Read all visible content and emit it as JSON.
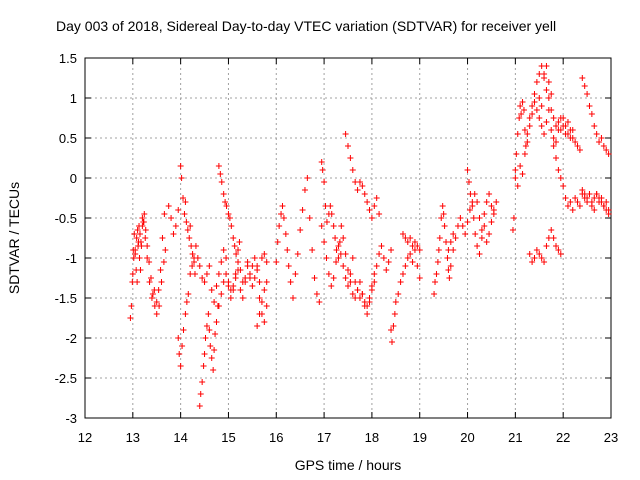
{
  "chart_data": {
    "type": "scatter",
    "title": "Day 003 of 2018, Sidereal Day-to-day VTEC variation (SDTVAR) for receiver yell",
    "xlabel": "GPS time / hours",
    "ylabel": "SDTVAR / TECUs",
    "xlim": [
      12,
      23
    ],
    "ylim": [
      -3,
      1.5
    ],
    "x_ticks": [
      12,
      13,
      14,
      15,
      16,
      17,
      18,
      19,
      20,
      21,
      22,
      23
    ],
    "x_tick_labels": [
      "12",
      "13",
      "14",
      "15",
      "16",
      "17",
      "18",
      "19",
      "20",
      "21",
      "22",
      "23"
    ],
    "y_ticks": [
      -3,
      -2.5,
      -2,
      -1.5,
      -1,
      -0.5,
      0,
      0.5,
      1,
      1.5
    ],
    "y_tick_labels": [
      "-3",
      "-2.5",
      "-2",
      "-1.5",
      "-1",
      "-0.5",
      "0",
      "0.5",
      "1",
      "1.5"
    ],
    "grid": true,
    "marker": "+",
    "series": [
      {
        "name": "SDTVAR",
        "color": "#ff0000",
        "x": [
          12.95,
          12.97,
          12.99,
          13.01,
          13.03,
          13.05,
          13.07,
          13.09,
          13.11,
          13.13,
          13.15,
          13.17,
          13.2,
          13.23,
          13.26,
          13.3,
          13.35,
          13.4,
          13.45,
          13.5,
          13.55,
          13.6,
          13.65,
          13.68,
          13.0,
          13.02,
          13.05,
          13.08,
          13.1,
          13.12,
          13.14,
          13.16,
          13.18,
          13.2,
          13.22,
          13.24,
          13.27,
          13.3,
          13.34,
          13.38,
          13.42,
          13.46,
          13.5,
          13.54,
          13.58,
          13.62,
          13.66,
          13.75,
          13.8,
          13.85,
          13.9,
          13.95,
          14.0,
          14.02,
          14.05,
          14.08,
          14.1,
          14.12,
          14.15,
          14.18,
          14.2,
          14.22,
          14.25,
          14.28,
          14.3,
          13.95,
          13.97,
          14.0,
          14.03,
          14.06,
          14.1,
          14.13,
          14.16,
          14.2,
          14.24,
          14.28,
          14.32,
          14.36,
          14.4,
          14.45,
          14.5,
          14.55,
          14.6,
          14.65,
          14.7,
          14.75,
          14.8,
          14.85,
          14.9,
          14.95,
          15.0,
          15.05,
          15.1,
          15.15,
          15.2,
          15.25,
          15.3,
          15.35,
          15.4,
          15.45,
          15.5,
          15.55,
          15.6,
          15.65,
          15.7,
          15.75,
          15.8,
          14.4,
          14.42,
          14.45,
          14.48,
          14.5,
          14.52,
          14.55,
          14.58,
          14.6,
          14.62,
          14.65,
          14.68,
          14.7,
          14.72,
          14.75,
          14.78,
          14.8,
          14.85,
          14.9,
          14.95,
          15.0,
          15.05,
          15.1,
          15.15,
          15.2,
          15.25,
          15.3,
          15.35,
          15.4,
          15.45,
          15.5,
          15.55,
          15.6,
          15.65,
          15.7,
          15.75,
          15.8,
          14.8,
          14.83,
          14.86,
          14.9,
          14.93,
          14.96,
          15.0,
          15.03,
          15.06,
          15.1,
          15.13,
          15.16,
          15.2,
          15.23,
          15.6,
          15.65,
          15.7,
          15.75,
          15.8,
          16.0,
          16.03,
          16.06,
          16.1,
          16.13,
          16.16,
          16.2,
          16.23,
          16.26,
          16.3,
          16.35,
          16.4,
          16.45,
          16.5,
          16.55,
          16.6,
          16.65,
          16.7,
          16.75,
          16.8,
          16.85,
          16.9,
          16.95,
          16.97,
          17.0,
          17.03,
          17.06,
          17.1,
          17.13,
          17.16,
          17.2,
          17.23,
          17.26,
          17.3,
          17.33,
          17.36,
          17.4,
          17.45,
          17.5,
          17.55,
          17.6,
          17.65,
          17.7,
          17.75,
          17.8,
          17.85,
          17.9,
          17.95,
          18.0,
          18.05,
          18.1,
          18.15,
          18.2,
          18.25,
          18.3,
          18.35,
          18.4,
          16.95,
          17.0,
          17.05,
          17.1,
          17.15,
          17.2,
          17.25,
          17.3,
          17.35,
          17.4,
          17.45,
          17.5,
          17.55,
          17.6,
          17.65,
          17.7,
          17.75,
          17.8,
          17.85,
          17.9,
          17.95,
          18.0,
          18.05,
          17.45,
          17.5,
          17.55,
          17.6,
          17.65,
          17.7,
          17.75,
          17.8,
          17.85,
          17.9,
          17.95,
          18.0,
          18.05,
          18.1,
          18.15,
          18.4,
          18.42,
          18.45,
          18.48,
          18.5,
          18.55,
          18.6,
          18.65,
          18.7,
          18.75,
          18.8,
          18.85,
          18.9,
          18.95,
          19.0,
          18.65,
          18.7,
          18.75,
          18.8,
          18.85,
          18.9,
          18.95,
          19.0,
          19.3,
          19.32,
          19.35,
          19.38,
          19.4,
          19.42,
          19.45,
          19.48,
          19.5,
          19.52,
          19.55,
          19.58,
          19.6,
          19.62,
          19.65,
          19.7,
          19.6,
          19.65,
          19.7,
          19.75,
          19.8,
          19.85,
          19.9,
          19.95,
          20.0,
          20.05,
          20.1,
          20.15,
          20.2,
          20.25,
          20.3,
          20.35,
          20.4,
          20.45,
          20.5,
          20.55,
          20.6,
          20.0,
          20.03,
          20.06,
          20.1,
          20.13,
          20.16,
          20.2,
          20.25,
          20.3,
          20.35,
          20.4,
          20.45,
          20.5,
          20.55,
          20.95,
          20.97,
          21.0,
          21.02,
          21.05,
          21.08,
          21.1,
          21.12,
          21.15,
          21.18,
          21.2,
          21.22,
          21.25,
          21.3,
          21.35,
          21.4,
          21.45,
          21.5,
          21.55,
          21.6,
          21.65,
          21.7,
          21.75,
          21.8,
          21.85,
          21.9,
          21.95,
          22.0,
          22.05,
          22.1,
          22.15,
          22.2,
          22.25,
          22.3,
          22.35,
          22.4,
          22.45,
          22.5,
          22.55,
          22.6,
          22.65,
          22.7,
          22.75,
          22.8,
          22.85,
          22.9,
          22.95,
          21.0,
          21.05,
          21.1,
          21.15,
          21.2,
          21.25,
          21.3,
          21.35,
          21.4,
          21.45,
          21.5,
          21.55,
          21.6,
          21.65,
          21.7,
          21.75,
          21.5,
          21.55,
          21.6,
          21.65,
          21.7,
          21.75,
          21.8,
          21.85,
          21.9,
          21.95,
          22.0,
          22.05,
          22.1,
          22.15,
          22.2,
          21.8,
          21.85,
          21.9,
          21.95,
          22.0,
          22.05,
          22.1,
          22.15,
          22.2,
          22.25,
          22.3,
          22.35,
          22.4,
          22.45,
          22.5,
          22.55,
          22.6,
          22.65,
          22.7,
          22.75,
          22.8,
          22.85,
          22.9,
          22.95,
          21.3,
          21.35,
          21.4,
          21.45,
          21.5,
          21.55,
          21.6,
          21.65,
          21.7,
          21.75,
          21.8,
          21.85,
          21.9,
          21.95,
          22.4,
          22.45,
          22.5,
          22.55,
          22.6,
          22.65,
          22.7,
          22.75,
          22.8,
          22.85,
          22.9,
          22.95
        ],
        "y": [
          -1.75,
          -1.6,
          -1.3,
          -0.9,
          -0.7,
          -0.95,
          -1.15,
          -1.3,
          -0.85,
          -0.6,
          -0.7,
          -0.8,
          -0.5,
          -0.55,
          -0.75,
          -1.0,
          -1.3,
          -1.5,
          -1.4,
          -1.55,
          -1.6,
          -1.3,
          -1.05,
          -0.9,
          -1.2,
          -1.0,
          -0.9,
          -0.75,
          -0.65,
          -0.8,
          -1.0,
          -1.15,
          -0.85,
          -0.6,
          -0.55,
          -0.45,
          -0.65,
          -0.85,
          -1.05,
          -1.25,
          -1.45,
          -1.6,
          -1.7,
          -1.4,
          -1.15,
          -0.75,
          -0.45,
          -0.35,
          -0.5,
          -0.7,
          -0.6,
          -0.4,
          0.15,
          0.0,
          -0.25,
          -0.45,
          -0.3,
          -0.55,
          -0.65,
          -0.75,
          -0.6,
          -0.85,
          -0.95,
          -1.05,
          -1.2,
          -2.0,
          -2.2,
          -2.35,
          -2.1,
          -1.9,
          -1.7,
          -1.55,
          -1.45,
          -1.2,
          -1.1,
          -1.0,
          -0.85,
          -1.0,
          -1.1,
          -1.25,
          -1.3,
          -1.2,
          -1.1,
          -1.4,
          -1.55,
          -1.35,
          -1.2,
          -1.05,
          -0.9,
          -1.0,
          -1.3,
          -1.4,
          -1.35,
          -1.25,
          -1.15,
          -1.4,
          -1.5,
          -1.3,
          -1.05,
          -1.25,
          -1.1,
          -1.0,
          -1.15,
          -1.3,
          -1.0,
          -0.95,
          -1.05,
          -2.85,
          -2.7,
          -2.55,
          -2.35,
          -2.2,
          -2.0,
          -1.85,
          -1.7,
          -1.9,
          -2.1,
          -2.25,
          -2.4,
          -2.15,
          -1.95,
          -1.8,
          -1.6,
          -1.6,
          -1.45,
          -1.3,
          -1.2,
          -1.35,
          -1.5,
          -1.4,
          -1.2,
          -1.05,
          -1.15,
          -1.3,
          -1.25,
          -1.1,
          -1.2,
          -1.35,
          -1.25,
          -1.1,
          -1.5,
          -1.7,
          -1.8,
          -1.6,
          0.15,
          0.05,
          -0.05,
          -0.2,
          -0.3,
          -0.35,
          -0.45,
          -0.5,
          -0.6,
          -0.75,
          -0.85,
          -0.95,
          -0.9,
          -0.8,
          -1.85,
          -1.7,
          -1.55,
          -1.4,
          -1.3,
          -1.05,
          -0.8,
          -0.6,
          -0.45,
          -0.35,
          -0.5,
          -0.7,
          -0.9,
          -1.1,
          -1.3,
          -1.5,
          -1.2,
          -0.95,
          -0.65,
          -0.4,
          -0.15,
          0.0,
          -0.5,
          -0.9,
          -1.25,
          -1.45,
          -1.55,
          0.2,
          0.1,
          -0.05,
          -0.35,
          -0.55,
          -0.45,
          -0.35,
          -0.45,
          -0.6,
          -0.75,
          -0.9,
          -1.0,
          -0.8,
          -0.6,
          -0.75,
          -0.95,
          -1.15,
          -1.3,
          -1.45,
          -1.5,
          -1.4,
          -1.3,
          -1.45,
          -1.6,
          -1.7,
          -1.55,
          -1.35,
          -1.2,
          -1.1,
          -0.95,
          -0.85,
          -1.0,
          -1.15,
          -1.05,
          -0.9,
          -0.6,
          -0.8,
          -1.0,
          -1.2,
          -1.35,
          -1.25,
          -1.05,
          -0.85,
          -0.95,
          -1.1,
          -1.25,
          -1.35,
          -1.2,
          -1.0,
          -1.3,
          -1.4,
          -1.5,
          -1.45,
          -1.55,
          -1.6,
          -1.5,
          -1.4,
          -1.3,
          0.55,
          0.4,
          0.25,
          0.1,
          -0.05,
          -0.15,
          -0.05,
          -0.1,
          -0.2,
          -0.3,
          -0.4,
          -0.5,
          -0.35,
          -0.25,
          -0.45,
          -1.9,
          -2.05,
          -1.85,
          -1.7,
          -1.55,
          -1.45,
          -1.3,
          -1.2,
          -1.1,
          -1.0,
          -0.95,
          -1.05,
          -0.9,
          -1.1,
          -1.25,
          -0.7,
          -0.75,
          -0.8,
          -0.75,
          -0.85,
          -0.8,
          -0.85,
          -0.9,
          -1.45,
          -1.3,
          -1.2,
          -1.05,
          -0.9,
          -0.75,
          -0.5,
          -0.35,
          -0.45,
          -0.6,
          -0.8,
          -1.0,
          -1.15,
          -1.25,
          -1.1,
          -0.9,
          -0.9,
          -0.8,
          -0.7,
          -0.75,
          -0.6,
          -0.5,
          -0.6,
          -0.7,
          -0.55,
          -0.4,
          -0.3,
          -0.2,
          -0.3,
          -0.5,
          -0.65,
          -0.45,
          -0.3,
          -0.2,
          -0.35,
          -0.45,
          -0.3,
          0.1,
          -0.05,
          -0.2,
          -0.35,
          -0.5,
          -0.7,
          -0.85,
          -0.95,
          -0.75,
          -0.6,
          -0.8,
          -0.7,
          -0.55,
          -0.4,
          -0.65,
          -0.5,
          0.1,
          0.3,
          0.55,
          0.75,
          0.9,
          0.8,
          0.95,
          0.85,
          0.6,
          0.4,
          0.55,
          0.75,
          0.9,
          1.05,
          1.2,
          1.3,
          1.4,
          1.25,
          1.1,
          1.0,
          0.85,
          0.75,
          0.65,
          0.7,
          0.6,
          0.75,
          0.65,
          0.55,
          0.5,
          0.6,
          0.45,
          0.4,
          0.35,
          1.25,
          1.15,
          1.05,
          0.9,
          0.8,
          0.65,
          0.55,
          0.45,
          0.5,
          0.4,
          0.35,
          0.3,
          0.0,
          -0.1,
          0.15,
          0.05,
          0.3,
          0.45,
          0.65,
          0.8,
          0.95,
          0.85,
          1.0,
          0.9,
          1.3,
          1.4,
          1.2,
          1.05,
          0.75,
          0.65,
          0.55,
          0.7,
          0.85,
          0.6,
          0.5,
          0.45,
          0.6,
          0.75,
          0.65,
          0.55,
          0.7,
          0.6,
          0.5,
          0.4,
          0.25,
          0.1,
          0.0,
          -0.1,
          -0.25,
          -0.35,
          -0.3,
          -0.4,
          -0.25,
          -0.3,
          -0.35,
          -0.2,
          -0.25,
          -0.3,
          -0.2,
          -0.35,
          -0.4,
          -0.2,
          -0.25,
          -0.3,
          -0.35,
          -0.4,
          -0.45,
          -0.95,
          -1.05,
          -1.0,
          -0.9,
          -0.95,
          -1.0,
          -1.05,
          -0.85,
          -0.75,
          -0.65,
          -0.75,
          -0.85,
          -0.9,
          -0.95,
          -0.15,
          -0.2,
          -0.25,
          -0.2,
          -0.3,
          -0.25,
          -0.2,
          -0.3,
          -0.25,
          -0.35,
          -0.3,
          -0.4
        ]
      }
    ]
  }
}
